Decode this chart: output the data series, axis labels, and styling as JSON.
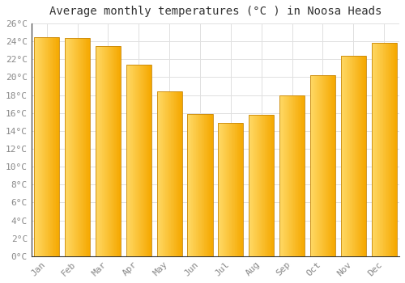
{
  "title": "Average monthly temperatures (°C ) in Noosa Heads",
  "months": [
    "Jan",
    "Feb",
    "Mar",
    "Apr",
    "May",
    "Jun",
    "Jul",
    "Aug",
    "Sep",
    "Oct",
    "Nov",
    "Dec"
  ],
  "values": [
    24.5,
    24.4,
    23.5,
    21.4,
    18.4,
    15.9,
    14.9,
    15.8,
    18.0,
    20.2,
    22.4,
    23.8
  ],
  "bar_color_left": "#FFD966",
  "bar_color_right": "#F5A800",
  "bar_edge_color": "#C8870A",
  "background_color": "#FFFFFF",
  "grid_color": "#E0E0E0",
  "ylim": [
    0,
    26
  ],
  "ytick_step": 2,
  "title_fontsize": 10,
  "tick_fontsize": 8,
  "tick_color": "#888888",
  "font_family": "monospace",
  "bar_width": 0.82
}
